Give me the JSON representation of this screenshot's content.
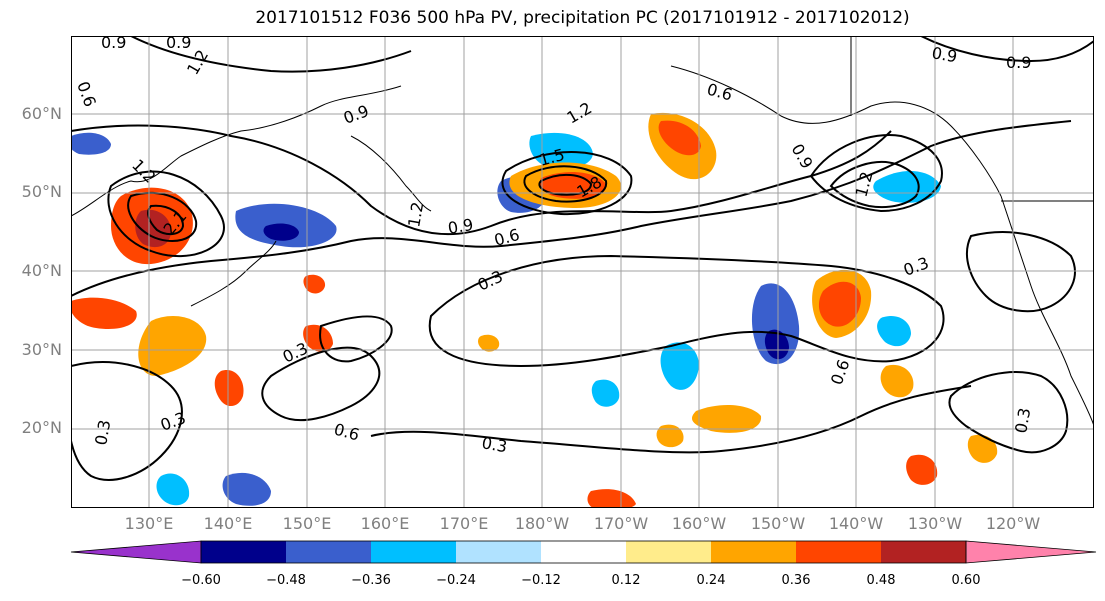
{
  "title": "2017101512 F036 500 hPa PV, precipitation PC (2017101912 - 2017102012)",
  "lat_labels": [
    "60°N",
    "50°N",
    "40°N",
    "30°N",
    "20°N"
  ],
  "lon_labels": [
    "130°E",
    "140°E",
    "150°E",
    "160°E",
    "170°E",
    "180°W",
    "170°W",
    "160°W",
    "150°W",
    "140°W",
    "130°W",
    "120°W"
  ],
  "contour_labels": [
    "0.9",
    "0.9",
    "0.6",
    "1.2",
    "0.9",
    "0.6",
    "0.9",
    "0.9",
    "1.2",
    "0.9",
    "1.5",
    "1.8",
    "2.1",
    "1.2",
    "0.9",
    "0.6",
    "1.2",
    "1.2",
    "0.3",
    "0.3",
    "0.3",
    "0.3",
    "0.6",
    "0.3",
    "0.6",
    "0.3",
    "0.3"
  ],
  "colorbar": {
    "labels": [
      "−0.60",
      "−0.48",
      "−0.36",
      "−0.24",
      "−0.12",
      "0.12",
      "0.24",
      "0.36",
      "0.48",
      "0.60"
    ],
    "colors": [
      "#9932cc",
      "#00008b",
      "#3a5fcd",
      "#00bfff",
      "#b0e2ff",
      "#ffffff",
      "#ffec8b",
      "#ffa500",
      "#ff4500",
      "#b22222",
      "#ff82ab"
    ]
  },
  "colors": {
    "axis_label": "#808080",
    "grid": "#a0a0a0",
    "contour": "#000000"
  }
}
